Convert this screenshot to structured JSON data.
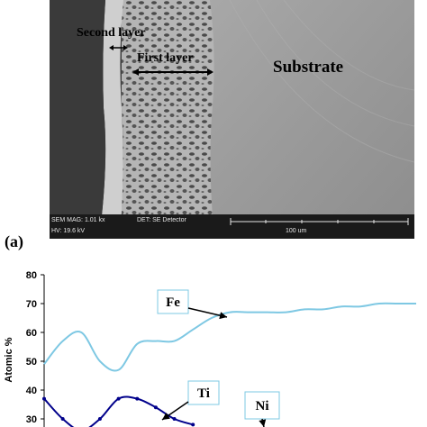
{
  "figure": {
    "panel_label": "(a)",
    "sem": {
      "labels": {
        "second_layer": "Second layer",
        "first_layer": "First layer",
        "substrate": "Substrate"
      },
      "info_bar": {
        "mag": "SEM MAG: 1.01 kx",
        "hv": "HV: 19.6 kV",
        "detector": "DET: SE Detector",
        "scale": "100 um"
      }
    }
  },
  "chart_data": {
    "type": "line",
    "ylabel": "Atomic %",
    "ylim": [
      30,
      80
    ],
    "yticks": [
      "80",
      "70",
      "60",
      "50",
      "40",
      "30"
    ],
    "grid": false,
    "series": [
      {
        "name": "Fe",
        "color": "#7ec8e3",
        "x": [
          0,
          5,
          10,
          15,
          20,
          25,
          30,
          35,
          40,
          45,
          50,
          55,
          60,
          65,
          70,
          75,
          80,
          85,
          90,
          95,
          100
        ],
        "values": [
          49,
          57,
          60,
          50,
          47,
          56,
          57,
          57,
          61,
          65,
          67,
          67,
          67,
          67,
          68,
          68,
          69,
          69,
          70,
          70,
          70
        ]
      },
      {
        "name": "Ti",
        "color": "#00008b",
        "x": [
          0,
          5,
          10,
          15,
          20,
          25,
          30,
          35,
          40
        ],
        "values": [
          37,
          30,
          26,
          30,
          37,
          37,
          34,
          30,
          28
        ]
      },
      {
        "name": "Ni",
        "color": "#000000",
        "x": [],
        "values": []
      }
    ],
    "callouts": [
      {
        "text": "Fe"
      },
      {
        "text": "Ti"
      },
      {
        "text": "Ni"
      }
    ]
  }
}
